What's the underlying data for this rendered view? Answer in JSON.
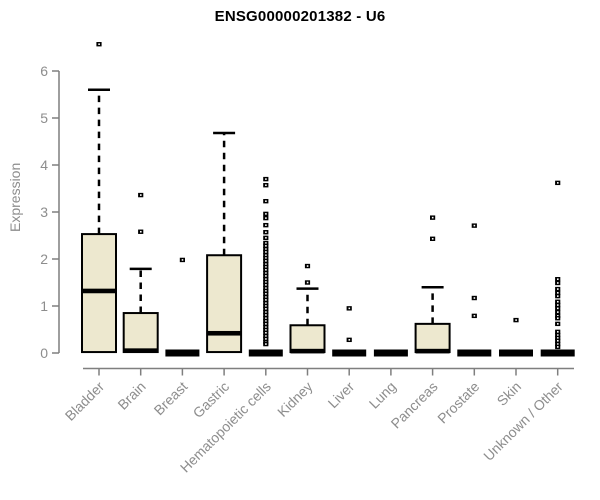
{
  "chart_data": {
    "type": "boxplot",
    "title": "ENSG00000201382 - U6",
    "ylabel": "Expression",
    "xlabel": "",
    "ylim": [
      0,
      6.8
    ],
    "yticks": [
      0,
      1,
      2,
      3,
      4,
      5,
      6
    ],
    "grid": false,
    "legend": "none",
    "colors": {
      "box_fill": "#ede8cf",
      "box_border": "#000000",
      "median": "#000000",
      "whisker": "#000000",
      "outlier": "#000000",
      "axis": "#7f7f7f",
      "tick_text": "#8d8d8d",
      "title_text": "#000000",
      "background": "#ffffff"
    },
    "categories": [
      "Bladder",
      "Brain",
      "Breast",
      "Gastric",
      "Hematopoietic cells",
      "Kidney",
      "Liver",
      "Lung",
      "Pancreas",
      "Prostate",
      "Skin",
      "Unknown / Other"
    ],
    "boxes": [
      {
        "label": "Bladder",
        "q1": 0.02,
        "median": 1.32,
        "q3": 2.53,
        "whisker_low": 0,
        "whisker_high": 5.6,
        "outliers": [
          6.57
        ]
      },
      {
        "label": "Brain",
        "q1": 0.02,
        "median": 0.05,
        "q3": 0.85,
        "whisker_low": 0,
        "whisker_high": 1.79,
        "outliers": [
          3.36,
          2.58
        ]
      },
      {
        "label": "Breast",
        "q1": 0,
        "median": 0.02,
        "q3": 0.04,
        "whisker_low": 0,
        "whisker_high": 0.04,
        "outliers": [
          1.98
        ]
      },
      {
        "label": "Gastric",
        "q1": 0.02,
        "median": 0.42,
        "q3": 2.08,
        "whisker_low": 0,
        "whisker_high": 4.68,
        "outliers": []
      },
      {
        "label": "Hematopoietic cells",
        "q1": 0,
        "median": 0.02,
        "q3": 0.04,
        "whisker_low": 0,
        "whisker_high": 0.04,
        "outliers": [
          3.7,
          3.57,
          3.23,
          2.96,
          2.87,
          2.72,
          2.57,
          2.45,
          2.34,
          2.28,
          2.21,
          2.15,
          2.08,
          2.02,
          1.96,
          1.89,
          1.83,
          1.77,
          1.7,
          1.64,
          1.57,
          1.51,
          1.45,
          1.38,
          1.32,
          1.26,
          1.19,
          1.13,
          1.06,
          1.0,
          0.94,
          0.87,
          0.81,
          0.74,
          0.68,
          0.62,
          0.55,
          0.49,
          0.43,
          0.36,
          0.3,
          0.23,
          0.19
        ]
      },
      {
        "label": "Kidney",
        "q1": 0.02,
        "median": 0.04,
        "q3": 0.59,
        "whisker_low": 0,
        "whisker_high": 1.37,
        "outliers": [
          1.85,
          1.5
        ]
      },
      {
        "label": "Liver",
        "q1": 0,
        "median": 0.02,
        "q3": 0.04,
        "whisker_low": 0,
        "whisker_high": 0.04,
        "outliers": [
          0.95,
          0.28
        ]
      },
      {
        "label": "Lung",
        "q1": 0,
        "median": 0.02,
        "q3": 0.04,
        "whisker_low": 0,
        "whisker_high": 0.04,
        "outliers": []
      },
      {
        "label": "Pancreas",
        "q1": 0.02,
        "median": 0.04,
        "q3": 0.62,
        "whisker_low": 0,
        "whisker_high": 1.4,
        "outliers": [
          2.88,
          2.43
        ]
      },
      {
        "label": "Prostate",
        "q1": 0,
        "median": 0.02,
        "q3": 0.04,
        "whisker_low": 0,
        "whisker_high": 0.04,
        "outliers": [
          2.71,
          1.17,
          0.79
        ]
      },
      {
        "label": "Skin",
        "q1": 0,
        "median": 0.02,
        "q3": 0.04,
        "whisker_low": 0,
        "whisker_high": 0.04,
        "outliers": [
          0.7
        ]
      },
      {
        "label": "Unknown / Other",
        "q1": 0,
        "median": 0.02,
        "q3": 0.04,
        "whisker_low": 0,
        "whisker_high": 0.04,
        "outliers": [
          3.62,
          1.57,
          1.49,
          1.36,
          1.28,
          1.21,
          1.09,
          1.02,
          0.95,
          0.87,
          0.79,
          0.74,
          0.62,
          0.45,
          0.38,
          0.32,
          0.26,
          0.19,
          0.13
        ]
      }
    ]
  }
}
